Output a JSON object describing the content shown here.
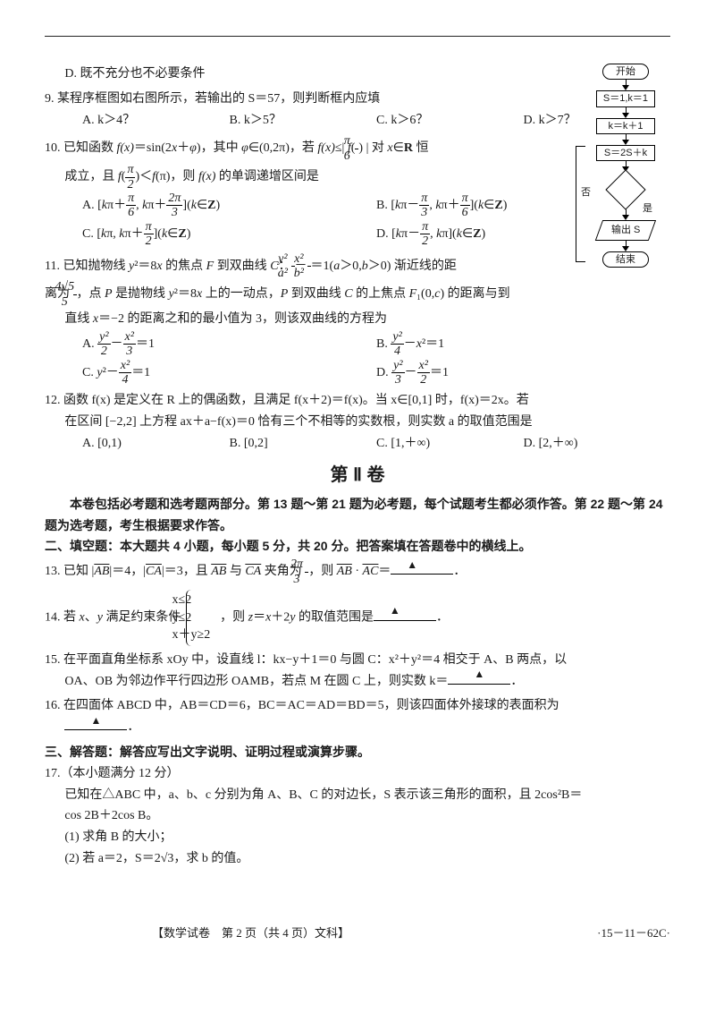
{
  "page": {
    "footer_left": "【数学试卷　第 2 页（共 4 页）文科】",
    "footer_right": "·15－11－62C·",
    "section2_title": "第 Ⅱ 卷",
    "section2_intro": "本卷包括必考题和选考题两部分。第 13 题～第 21 题为必考题，每个试题考生都必须作答。第 22 题～第 24 题为选考题，考生根据要求作答。",
    "fill_heading": "二、填空题：本大题共 4 小题，每小题 5 分，共 20 分。把答案填在答题卷中的横线上。",
    "solve_heading": "三、解答题：解答应写出文字说明、证明过程或演算步骤。"
  },
  "flow": {
    "start": "开始",
    "init": "S＝1,k＝1",
    "step": "k＝k＋1",
    "update": "S＝2S＋k",
    "no": "否",
    "yes": "是",
    "out": "输出 S",
    "end": "结束"
  },
  "q8": {
    "optD": "D. 既不充分也不必要条件"
  },
  "q9": {
    "stem": "9. 某程序框图如右图所示，若输出的 S＝57，则判断框内应填",
    "A": "A. k＞4？",
    "B": "B. k＞5？",
    "C": "C. k＞6？",
    "D": "D. k＞7？"
  },
  "q10": {
    "stem1": "10. 已知函数 f(x)＝sin(2x＋φ)，其中 φ∈(0,2π)，若 f(x)≤| f(π/6) | 对 x∈R 恒",
    "stem2": "成立，且 f(π/2)＜f(π)，则 f(x) 的单调递增区间是",
    "A": "A. [kπ＋π/6, kπ＋2π/3](k∈Z)",
    "B": "B. [kπ－π/3, kπ＋π/6](k∈Z)",
    "C": "C. [kπ, kπ＋π/2](k∈Z)",
    "D": "D. [kπ－π/2, kπ](k∈Z)"
  },
  "q11": {
    "stem1": "11. 已知抛物线 y²＝8x 的焦点 F 到双曲线 C：y²/a² − x²/b² ＝1(a＞0,b＞0) 渐近线的距",
    "stem2": "离为 4√5/5，点 P 是抛物线 y²＝8x 上的一动点，P 到双曲线 C 的上焦点 F₁(0,c) 的距离与到",
    "stem3": "直线 x＝−2 的距离之和的最小值为 3，则该双曲线的方程为",
    "A": "A. y²/2 − x²/3 ＝1",
    "B": "B. y²/4 − x² ＝1",
    "C": "C. y² − x²/4 ＝1",
    "D": "D. y²/3 − x²/2 ＝1"
  },
  "q12": {
    "stem1": "12. 函数 f(x) 是定义在 R 上的偶函数，且满足 f(x＋2)＝f(x)。当 x∈[0,1] 时，f(x)＝2x。若",
    "stem2": "在区间 [−2,2] 上方程 ax＋a−f(x)＝0 恰有三个不相等的实数根，则实数 a 的取值范围是",
    "A": "A. [0,1)",
    "B": "B. [0,2]",
    "C": "C. [1,＋∞)",
    "D": "D. [2,＋∞)"
  },
  "q13": {
    "stem": "13. 已知 |A͞B|＝4，|C͞A|＝3，且 A͞B 与 C͞A 夹角为 2π/3，则 A͞B · A͞C＝"
  },
  "q14": {
    "stem_pre": "14. 若 x、y 满足约束条件",
    "c1": "x≤2",
    "c2": "y≤2",
    "c3": "x＋y≥2",
    "stem_post": "，则 z＝x＋2y 的取值范围是"
  },
  "q15": {
    "stem1": "15. 在平面直角坐标系 xOy 中，设直线 l：kx−y＋1＝0 与圆 C：x²＋y²＝4 相交于 A、B 两点，以",
    "stem2": "OA、OB 为邻边作平行四边形 OAMB，若点 M 在圆 C 上，则实数 k＝"
  },
  "q16": {
    "stem": "16. 在四面体 ABCD 中，AB＝CD＝6，BC＝AC＝AD＝BD＝5，则该四面体外接球的表面积为"
  },
  "q17": {
    "head": "17.（本小题满分 12 分）",
    "body1": "已知在△ABC 中，a、b、c 分别为角 A、B、C 的对边长，S 表示该三角形的面积，且 2cos²B＝",
    "body2": "cos 2B＋2cos B。",
    "p1": "(1) 求角 B 的大小；",
    "p2": "(2) 若 a＝2，S＝2√3，求 b 的值。"
  }
}
